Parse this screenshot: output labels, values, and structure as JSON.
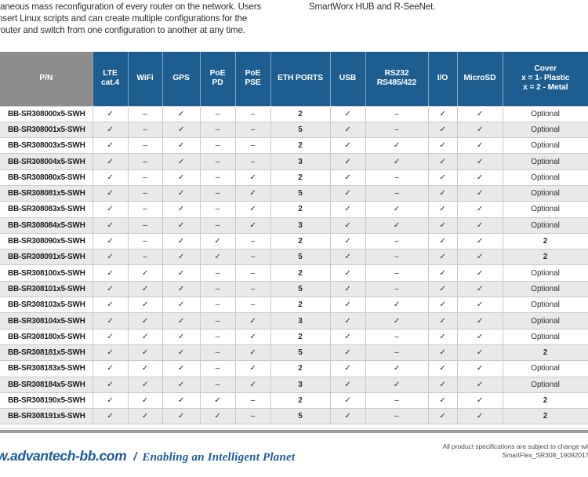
{
  "intro": {
    "left_lines": [
      "taneous mass reconfiguration of every router on the network. Users",
      "nsert Linux scripts and can create multiple configurations for the",
      "router and switch from one configuration to another at any time."
    ],
    "right_line": "SmartWorx HUB and R-SeeNet."
  },
  "table": {
    "check_glyph": "✓",
    "dash_glyph": "–",
    "columns": [
      {
        "key": "pn",
        "lines": [
          "P/N"
        ]
      },
      {
        "key": "lte-cat4",
        "lines": [
          "LTE",
          "cat.4"
        ]
      },
      {
        "key": "wifi",
        "lines": [
          "WiFi"
        ]
      },
      {
        "key": "gps",
        "lines": [
          "GPS"
        ]
      },
      {
        "key": "poe-pd",
        "lines": [
          "PoE",
          "PD"
        ]
      },
      {
        "key": "poe-pse",
        "lines": [
          "PoE",
          "PSE"
        ]
      },
      {
        "key": "eth-ports",
        "lines": [
          "ETH PORTS"
        ]
      },
      {
        "key": "usb",
        "lines": [
          "USB"
        ]
      },
      {
        "key": "rs232-rs485",
        "lines": [
          "RS232",
          "RS485/422"
        ]
      },
      {
        "key": "io",
        "lines": [
          "I/O"
        ]
      },
      {
        "key": "microsd",
        "lines": [
          "MicroSD"
        ]
      },
      {
        "key": "cover",
        "lines": [
          "Cover",
          "x = 1- Plastic",
          "x = 2 - Metal"
        ]
      }
    ],
    "rows": [
      [
        "BB-SR308000x5-SWH",
        "✓",
        "–",
        "✓",
        "–",
        "–",
        "2",
        "✓",
        "–",
        "✓",
        "✓",
        "Optional"
      ],
      [
        "BB-SR308001x5-SWH",
        "✓",
        "–",
        "✓",
        "–",
        "–",
        "5",
        "✓",
        "–",
        "✓",
        "✓",
        "Optional"
      ],
      [
        "BB-SR308003x5-SWH",
        "✓",
        "–",
        "✓",
        "–",
        "–",
        "2",
        "✓",
        "✓",
        "✓",
        "✓",
        "Optional"
      ],
      [
        "BB-SR308004x5-SWH",
        "✓",
        "–",
        "✓",
        "–",
        "–",
        "3",
        "✓",
        "✓",
        "✓",
        "✓",
        "Optional"
      ],
      [
        "BB-SR308080x5-SWH",
        "✓",
        "–",
        "✓",
        "–",
        "✓",
        "2",
        "✓",
        "–",
        "✓",
        "✓",
        "Optional"
      ],
      [
        "BB-SR308081x5-SWH",
        "✓",
        "–",
        "✓",
        "–",
        "✓",
        "5",
        "✓",
        "–",
        "✓",
        "✓",
        "Optional"
      ],
      [
        "BB-SR308083x5-SWH",
        "✓",
        "–",
        "✓",
        "–",
        "✓",
        "2",
        "✓",
        "✓",
        "✓",
        "✓",
        "Optional"
      ],
      [
        "BB-SR308084x5-SWH",
        "✓",
        "–",
        "✓",
        "–",
        "✓",
        "3",
        "✓",
        "✓",
        "✓",
        "✓",
        "Optional"
      ],
      [
        "BB-SR308090x5-SWH",
        "✓",
        "–",
        "✓",
        "✓",
        "–",
        "2",
        "✓",
        "–",
        "✓",
        "✓",
        "2"
      ],
      [
        "BB-SR308091x5-SWH",
        "✓",
        "–",
        "✓",
        "✓",
        "–",
        "5",
        "✓",
        "–",
        "✓",
        "✓",
        "2"
      ],
      [
        "BB-SR308100x5-SWH",
        "✓",
        "✓",
        "✓",
        "–",
        "–",
        "2",
        "✓",
        "–",
        "✓",
        "✓",
        "Optional"
      ],
      [
        "BB-SR308101x5-SWH",
        "✓",
        "✓",
        "✓",
        "–",
        "–",
        "5",
        "✓",
        "–",
        "✓",
        "✓",
        "Optional"
      ],
      [
        "BB-SR308103x5-SWH",
        "✓",
        "✓",
        "✓",
        "–",
        "–",
        "2",
        "✓",
        "✓",
        "✓",
        "✓",
        "Optional"
      ],
      [
        "BB-SR308104x5-SWH",
        "✓",
        "✓",
        "✓",
        "–",
        "✓",
        "3",
        "✓",
        "✓",
        "✓",
        "✓",
        "Optional"
      ],
      [
        "BB-SR308180x5-SWH",
        "✓",
        "✓",
        "✓",
        "–",
        "✓",
        "2",
        "✓",
        "–",
        "✓",
        "✓",
        "Optional"
      ],
      [
        "BB-SR308181x5-SWH",
        "✓",
        "✓",
        "✓",
        "–",
        "✓",
        "5",
        "✓",
        "–",
        "✓",
        "✓",
        "2"
      ],
      [
        "BB-SR308183x5-SWH",
        "✓",
        "✓",
        "✓",
        "–",
        "✓",
        "2",
        "✓",
        "✓",
        "✓",
        "✓",
        "Optional"
      ],
      [
        "BB-SR308184x5-SWH",
        "✓",
        "✓",
        "✓",
        "–",
        "✓",
        "3",
        "✓",
        "✓",
        "✓",
        "✓",
        "Optional"
      ],
      [
        "BB-SR308190x5-SWH",
        "✓",
        "✓",
        "✓",
        "✓",
        "–",
        "2",
        "✓",
        "–",
        "✓",
        "✓",
        "2"
      ],
      [
        "BB-SR308191x5-SWH",
        "✓",
        "✓",
        "✓",
        "✓",
        "–",
        "5",
        "✓",
        "–",
        "✓",
        "✓",
        "2"
      ]
    ]
  },
  "footer": {
    "site": "w.advantech-bb.com",
    "separator": "/",
    "slogan": "Enabling an Intelligent Planet",
    "note_line1": "All product specifications are subject to change with",
    "note_line2": "SmartFlex_SR308_19092017d"
  },
  "colors": {
    "header_blue": "#1e5d90",
    "header_gray": "#8d8d8d",
    "row_stripe": "#e9e9e9",
    "footer_blue": "#1b5b9e"
  }
}
